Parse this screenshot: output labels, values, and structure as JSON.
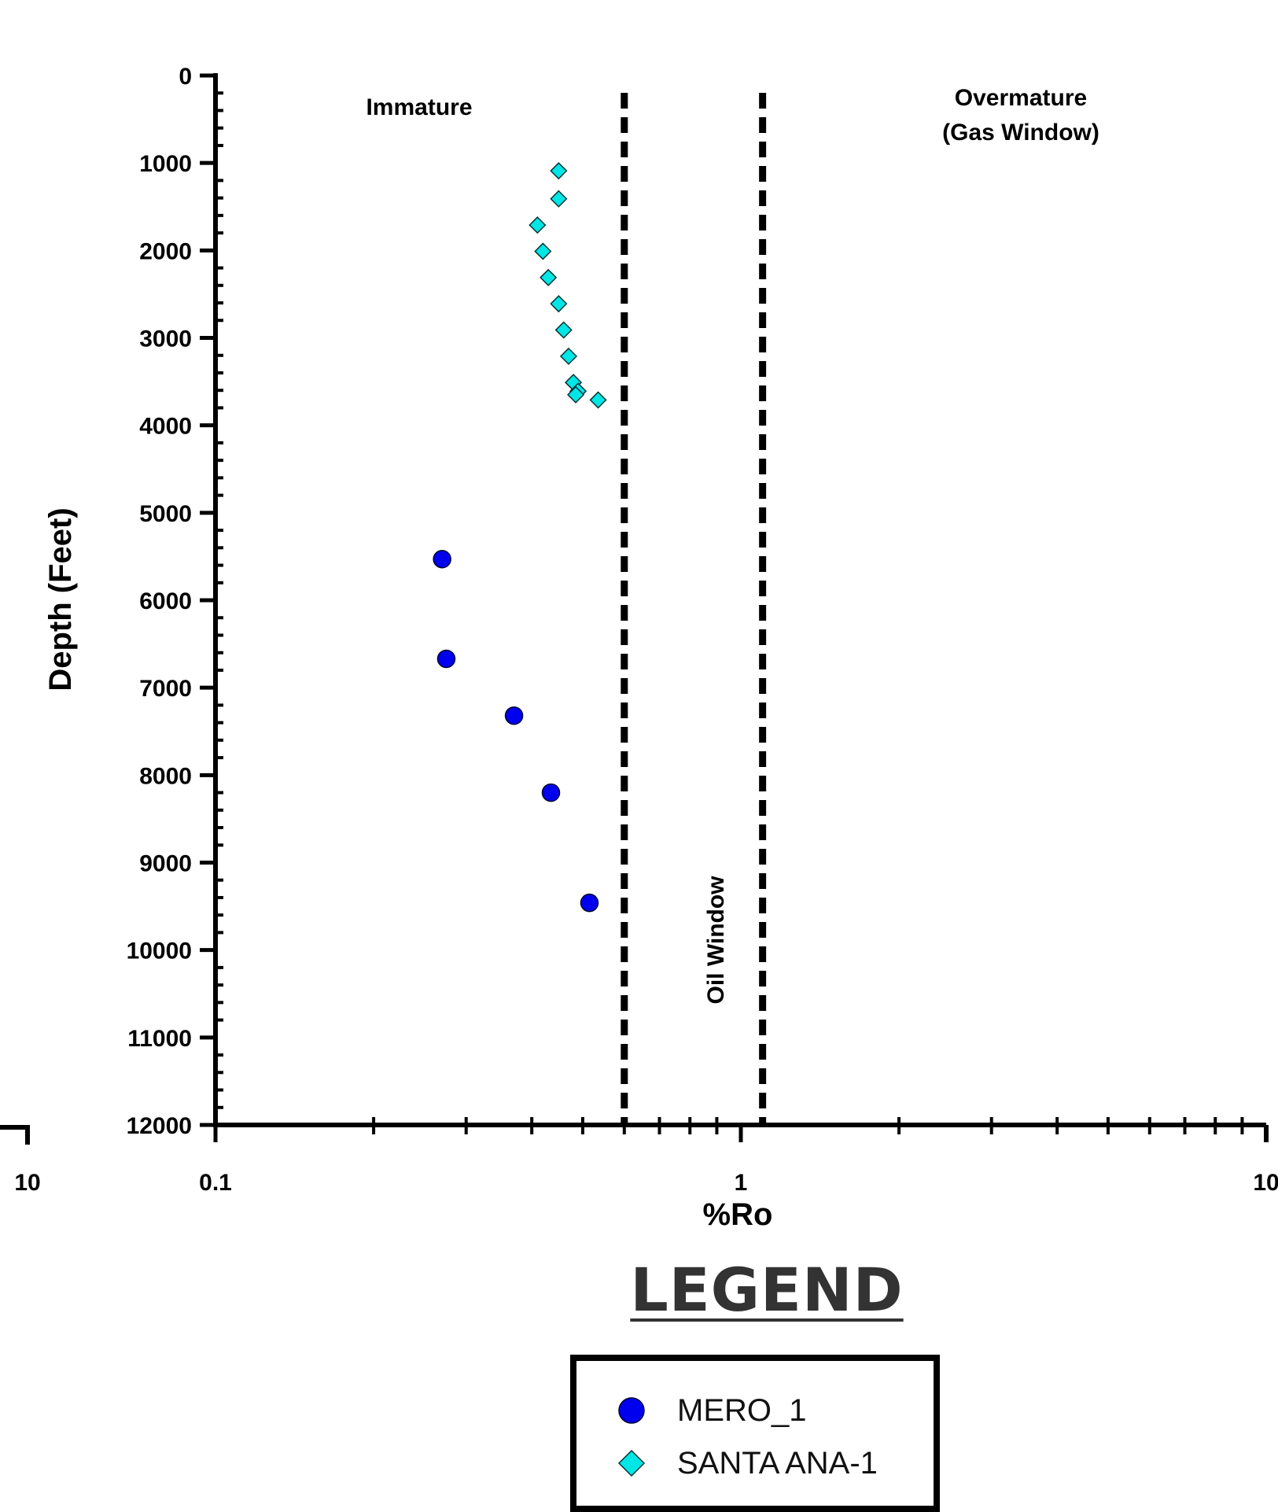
{
  "chart_data": {
    "type": "scatter",
    "xlabel": "%Ro",
    "ylabel": "Depth (Feet)",
    "x_scale": "log",
    "xlim": [
      0.1,
      10
    ],
    "ylim": [
      0,
      12000
    ],
    "y_inverted": true,
    "x_tick_labels": [
      "0.1",
      "1",
      "10"
    ],
    "y_tick_labels": [
      "0",
      "1000",
      "2000",
      "3000",
      "4000",
      "5000",
      "6000",
      "7000",
      "8000",
      "9000",
      "10000",
      "11000",
      "12000"
    ],
    "left_partial_tick_label": "10",
    "zone_boundaries": [
      0.6,
      1.1
    ],
    "annotations": {
      "immature": "Immature",
      "oil_window": "Oil Window",
      "overmature_line1": "Overmature",
      "overmature_line2": "(Gas Window)"
    },
    "legend_title": "LEGEND",
    "legend_position": "bottom-center",
    "grid": false,
    "series": [
      {
        "name": "MERO_1",
        "marker": "circle",
        "color": "#0000ee",
        "points": [
          {
            "x": 0.27,
            "y": 5530
          },
          {
            "x": 0.275,
            "y": 6670
          },
          {
            "x": 0.37,
            "y": 7320
          },
          {
            "x": 0.435,
            "y": 8200
          },
          {
            "x": 0.515,
            "y": 9460
          }
        ]
      },
      {
        "name": "SANTA ANA-1",
        "marker": "diamond",
        "color": "#00e6e6",
        "points": [
          {
            "x": 0.45,
            "y": 1090
          },
          {
            "x": 0.45,
            "y": 1410
          },
          {
            "x": 0.41,
            "y": 1710
          },
          {
            "x": 0.42,
            "y": 2010
          },
          {
            "x": 0.43,
            "y": 2310
          },
          {
            "x": 0.45,
            "y": 2610
          },
          {
            "x": 0.46,
            "y": 2910
          },
          {
            "x": 0.47,
            "y": 3210
          },
          {
            "x": 0.48,
            "y": 3510
          },
          {
            "x": 0.49,
            "y": 3610
          },
          {
            "x": 0.485,
            "y": 3650
          },
          {
            "x": 0.535,
            "y": 3710
          }
        ]
      }
    ]
  }
}
